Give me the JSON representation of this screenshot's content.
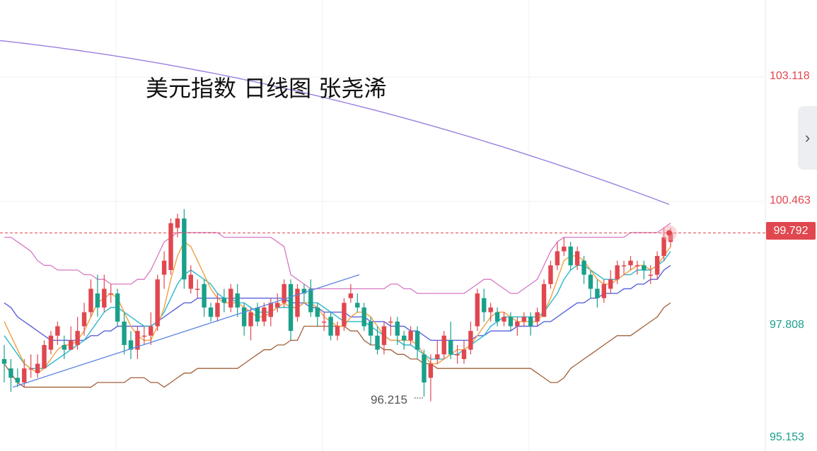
{
  "title": "美元指数 日线图 张尧浠",
  "axis": {
    "ticks": [
      {
        "label": "103.118",
        "value": 103.118,
        "color": "#e0474f"
      },
      {
        "label": "100.463",
        "value": 100.463,
        "color": "#e0474f"
      },
      {
        "label": "97.808",
        "value": 97.808,
        "color": "#1aa08a"
      },
      {
        "label": "95.153",
        "value": 95.153,
        "color": "#1aa08a"
      }
    ],
    "current_price": "99.792",
    "low_label": "96.215"
  },
  "side_button": {
    "icon": "chevron-right-icon",
    "glyph": "›"
  },
  "colors": {
    "up": "#e0474f",
    "down": "#1aa08a"
  },
  "chart_data": {
    "type": "candlestick",
    "ylim": [
      95.153,
      104.0
    ],
    "current": 99.792,
    "low_annotation": 96.215,
    "candles": [
      [
        97.1,
        97.0,
        97.4,
        96.6
      ],
      [
        96.9,
        96.7,
        97.1,
        96.4
      ],
      [
        96.7,
        96.6,
        96.9,
        96.5
      ],
      [
        96.6,
        96.9,
        97.1,
        96.5
      ],
      [
        96.9,
        96.9,
        97.2,
        96.7
      ],
      [
        96.8,
        97.0,
        97.2,
        96.7
      ],
      [
        96.9,
        97.4,
        97.5,
        96.9
      ],
      [
        97.3,
        97.6,
        97.7,
        97.2
      ],
      [
        97.6,
        97.8,
        97.9,
        97.4
      ],
      [
        97.4,
        97.3,
        97.6,
        97.1
      ],
      [
        97.3,
        97.5,
        97.8,
        97.3
      ],
      [
        97.4,
        97.7,
        98.0,
        97.3
      ],
      [
        97.8,
        98.1,
        98.3,
        97.6
      ],
      [
        98.1,
        98.6,
        98.8,
        98.0
      ],
      [
        98.5,
        98.2,
        98.9,
        98.0
      ],
      [
        98.2,
        98.6,
        98.9,
        98.1
      ],
      [
        98.5,
        98.5,
        98.7,
        98.3
      ],
      [
        98.5,
        97.9,
        98.6,
        97.8
      ],
      [
        97.9,
        97.4,
        98.1,
        97.2
      ],
      [
        97.5,
        97.3,
        97.7,
        97.1
      ],
      [
        97.3,
        97.7,
        97.8,
        97.1
      ],
      [
        97.6,
        97.6,
        97.8,
        97.4
      ],
      [
        97.6,
        97.8,
        98.1,
        97.4
      ],
      [
        97.8,
        98.8,
        98.9,
        97.7
      ],
      [
        98.9,
        99.2,
        99.4,
        98.6
      ],
      [
        99.0,
        100.0,
        100.1,
        98.9
      ],
      [
        99.9,
        100.1,
        100.2,
        99.7
      ],
      [
        100.1,
        98.8,
        100.3,
        98.6
      ],
      [
        98.6,
        98.9,
        99.1,
        98.5
      ],
      [
        98.6,
        98.6,
        98.8,
        98.4
      ],
      [
        98.7,
        98.2,
        98.8,
        98.0
      ],
      [
        98.2,
        98.0,
        98.3,
        97.9
      ],
      [
        98.0,
        98.3,
        98.5,
        97.9
      ],
      [
        98.4,
        98.3,
        98.6,
        98.1
      ],
      [
        98.2,
        98.6,
        98.7,
        98.1
      ],
      [
        98.5,
        98.2,
        98.7,
        98.0
      ],
      [
        98.2,
        97.8,
        98.3,
        97.6
      ],
      [
        97.8,
        98.1,
        98.2,
        97.5
      ],
      [
        98.2,
        97.9,
        98.3,
        97.8
      ],
      [
        97.9,
        98.2,
        98.3,
        97.8
      ],
      [
        98.0,
        98.3,
        98.4,
        97.8
      ],
      [
        98.2,
        98.3,
        98.5,
        98.1
      ],
      [
        98.3,
        98.7,
        98.8,
        98.2
      ],
      [
        98.7,
        97.7,
        98.8,
        97.5
      ],
      [
        98.0,
        98.6,
        98.7,
        97.9
      ],
      [
        98.6,
        98.5,
        98.7,
        98.3
      ],
      [
        98.6,
        98.1,
        98.8,
        98.0
      ],
      [
        98.2,
        98.0,
        98.3,
        97.8
      ],
      [
        97.9,
        97.9,
        98.1,
        97.7
      ],
      [
        98.0,
        97.6,
        98.1,
        97.5
      ],
      [
        97.6,
        97.8,
        97.9,
        97.5
      ],
      [
        97.8,
        98.3,
        98.4,
        97.7
      ],
      [
        98.4,
        98.5,
        98.7,
        98.3
      ],
      [
        98.3,
        98.2,
        98.5,
        98.1
      ],
      [
        98.2,
        97.8,
        98.3,
        97.7
      ],
      [
        97.9,
        97.6,
        98.0,
        97.4
      ],
      [
        97.6,
        97.3,
        97.8,
        97.2
      ],
      [
        97.4,
        97.8,
        97.9,
        97.2
      ],
      [
        97.9,
        97.9,
        98.0,
        97.6
      ],
      [
        97.9,
        97.6,
        98.0,
        97.4
      ],
      [
        97.6,
        97.5,
        97.7,
        97.3
      ],
      [
        97.5,
        97.7,
        97.8,
        97.4
      ],
      [
        97.7,
        97.3,
        97.8,
        97.1
      ],
      [
        97.2,
        96.6,
        97.3,
        96.3
      ],
      [
        96.7,
        97.0,
        97.2,
        96.2
      ],
      [
        97.1,
        97.2,
        97.5,
        97.0
      ],
      [
        97.2,
        97.6,
        97.7,
        97.1
      ],
      [
        97.5,
        97.2,
        97.9,
        97.1
      ],
      [
        97.2,
        97.2,
        97.4,
        97.0
      ],
      [
        97.1,
        97.3,
        97.5,
        97.0
      ],
      [
        97.3,
        97.7,
        97.9,
        97.2
      ],
      [
        97.8,
        98.5,
        98.6,
        97.7
      ],
      [
        98.4,
        98.1,
        98.6,
        97.9
      ],
      [
        98.1,
        98.2,
        98.3,
        97.9
      ],
      [
        98.1,
        97.9,
        98.2,
        97.8
      ],
      [
        97.9,
        98.0,
        98.1,
        97.8
      ],
      [
        98.0,
        97.8,
        98.1,
        97.7
      ],
      [
        97.8,
        97.9,
        98.0,
        97.6
      ],
      [
        97.9,
        98.0,
        98.1,
        97.8
      ],
      [
        98.0,
        97.8,
        98.1,
        97.6
      ],
      [
        97.9,
        98.1,
        98.2,
        97.8
      ],
      [
        98.0,
        98.7,
        98.8,
        98.0
      ],
      [
        98.7,
        99.1,
        99.2,
        98.6
      ],
      [
        99.1,
        99.4,
        99.6,
        99.0
      ],
      [
        99.4,
        99.5,
        99.7,
        99.3
      ],
      [
        99.5,
        99.1,
        99.6,
        99.0
      ],
      [
        99.1,
        99.4,
        99.5,
        99.0
      ],
      [
        99.2,
        98.9,
        99.3,
        98.7
      ],
      [
        98.9,
        98.6,
        99.0,
        98.4
      ],
      [
        98.6,
        98.4,
        98.8,
        98.2
      ],
      [
        98.4,
        98.7,
        98.8,
        98.3
      ],
      [
        98.6,
        98.8,
        99.0,
        98.5
      ],
      [
        98.8,
        99.1,
        99.2,
        98.7
      ],
      [
        99.1,
        99.1,
        99.2,
        98.9
      ],
      [
        99.1,
        99.2,
        99.3,
        99.0
      ],
      [
        99.1,
        99.1,
        99.2,
        98.9
      ],
      [
        99.1,
        99.0,
        99.2,
        98.8
      ],
      [
        98.9,
        98.9,
        99.1,
        98.7
      ],
      [
        98.9,
        99.3,
        99.4,
        98.8
      ],
      [
        99.3,
        99.7,
        99.9,
        99.2
      ],
      [
        99.6,
        99.8,
        99.9,
        99.5
      ]
    ],
    "ma_fast": [
      97.9,
      97.6,
      97.3,
      97.0,
      96.9,
      96.8,
      96.9,
      97.1,
      97.3,
      97.4,
      97.4,
      97.5,
      97.7,
      98.0,
      98.3,
      98.4,
      98.5,
      98.4,
      98.1,
      97.8,
      97.6,
      97.5,
      97.5,
      97.8,
      98.2,
      98.8,
      99.3,
      99.6,
      99.5,
      99.2,
      98.9,
      98.6,
      98.4,
      98.3,
      98.3,
      98.3,
      98.2,
      98.1,
      98.0,
      98.0,
      98.1,
      98.2,
      98.3,
      98.2,
      98.2,
      98.3,
      98.3,
      98.2,
      98.0,
      97.9,
      97.8,
      97.8,
      98.0,
      98.1,
      98.1,
      98.0,
      97.8,
      97.6,
      97.5,
      97.5,
      97.5,
      97.5,
      97.4,
      97.2,
      97.0,
      97.0,
      97.1,
      97.2,
      97.3,
      97.3,
      97.4,
      97.6,
      97.8,
      98.0,
      98.1,
      98.1,
      98.0,
      97.9,
      97.9,
      97.9,
      97.9,
      98.1,
      98.4,
      98.8,
      99.2,
      99.3,
      99.3,
      99.2,
      99.0,
      98.8,
      98.7,
      98.7,
      98.8,
      98.9,
      99.0,
      99.1,
      99.1,
      99.0,
      99.1,
      99.3,
      99.5
    ],
    "ma_mid": [
      97.6,
      97.4,
      97.2,
      97.0,
      96.9,
      96.9,
      96.9,
      97.0,
      97.1,
      97.2,
      97.3,
      97.4,
      97.5,
      97.7,
      97.9,
      98.1,
      98.2,
      98.2,
      98.1,
      98.0,
      97.9,
      97.8,
      97.8,
      97.9,
      98.1,
      98.4,
      98.7,
      98.9,
      99.0,
      98.9,
      98.8,
      98.7,
      98.5,
      98.4,
      98.4,
      98.3,
      98.3,
      98.2,
      98.1,
      98.1,
      98.1,
      98.2,
      98.2,
      98.2,
      98.2,
      98.3,
      98.3,
      98.3,
      98.2,
      98.1,
      98.0,
      97.9,
      97.9,
      97.9,
      97.9,
      97.8,
      97.7,
      97.6,
      97.5,
      97.5,
      97.4,
      97.4,
      97.3,
      97.2,
      97.1,
      97.1,
      97.1,
      97.2,
      97.2,
      97.3,
      97.4,
      97.5,
      97.6,
      97.8,
      97.9,
      98.0,
      98.0,
      98.0,
      98.0,
      98.0,
      98.0,
      98.1,
      98.3,
      98.5,
      98.8,
      99.0,
      99.1,
      99.1,
      99.0,
      98.9,
      98.8,
      98.8,
      98.8,
      98.9,
      98.9,
      99.0,
      99.0,
      99.0,
      99.1,
      99.2,
      99.4
    ],
    "ma_slow": [
      98.3,
      98.2,
      98.0,
      97.9,
      97.8,
      97.7,
      97.6,
      97.5,
      97.5,
      97.5,
      97.5,
      97.5,
      97.5,
      97.6,
      97.6,
      97.7,
      97.7,
      97.8,
      97.8,
      97.8,
      97.8,
      97.8,
      97.8,
      97.9,
      98.0,
      98.1,
      98.2,
      98.3,
      98.3,
      98.4,
      98.4,
      98.4,
      98.4,
      98.4,
      98.4,
      98.4,
      98.4,
      98.4,
      98.4,
      98.4,
      98.4,
      98.4,
      98.4,
      98.3,
      98.3,
      98.3,
      98.2,
      98.2,
      98.1,
      98.1,
      98.1,
      98.1,
      98.0,
      98.0,
      98.0,
      97.9,
      97.9,
      97.9,
      97.8,
      97.8,
      97.8,
      97.7,
      97.7,
      97.6,
      97.5,
      97.5,
      97.5,
      97.5,
      97.5,
      97.5,
      97.5,
      97.6,
      97.6,
      97.7,
      97.7,
      97.7,
      97.7,
      97.8,
      97.8,
      97.8,
      97.8,
      97.9,
      97.9,
      98.0,
      98.1,
      98.2,
      98.3,
      98.3,
      98.4,
      98.4,
      98.5,
      98.5,
      98.5,
      98.6,
      98.6,
      98.7,
      98.7,
      98.8,
      98.8,
      99.0,
      99.1
    ],
    "boll_upper": [
      99.7,
      99.7,
      99.6,
      99.5,
      99.4,
      99.2,
      99.1,
      99.1,
      99.0,
      99.0,
      99.0,
      99.0,
      98.9,
      98.9,
      98.8,
      98.8,
      98.7,
      98.7,
      98.7,
      98.7,
      98.8,
      98.8,
      99.0,
      99.3,
      99.6,
      99.7,
      99.8,
      99.8,
      99.8,
      99.8,
      99.8,
      99.8,
      99.8,
      99.7,
      99.7,
      99.7,
      99.7,
      99.7,
      99.7,
      99.7,
      99.7,
      99.6,
      99.5,
      98.9,
      98.8,
      98.7,
      98.6,
      98.6,
      98.6,
      98.6,
      98.6,
      98.6,
      98.6,
      98.6,
      98.6,
      98.6,
      98.6,
      98.6,
      98.7,
      98.7,
      98.6,
      98.6,
      98.5,
      98.5,
      98.5,
      98.5,
      98.5,
      98.5,
      98.5,
      98.5,
      98.6,
      98.7,
      98.8,
      98.8,
      98.7,
      98.6,
      98.5,
      98.5,
      98.6,
      98.7,
      98.8,
      99.1,
      99.4,
      99.6,
      99.7,
      99.7,
      99.7,
      99.7,
      99.7,
      99.7,
      99.7,
      99.7,
      99.7,
      99.7,
      99.8,
      99.8,
      99.8,
      99.8,
      99.8,
      99.9,
      100.0
    ],
    "boll_lower": [
      97.0,
      96.8,
      96.6,
      96.5,
      96.5,
      96.5,
      96.5,
      96.5,
      96.5,
      96.5,
      96.5,
      96.5,
      96.5,
      96.5,
      96.6,
      96.6,
      96.6,
      96.6,
      96.6,
      96.7,
      96.7,
      96.7,
      96.6,
      96.6,
      96.5,
      96.6,
      96.7,
      96.8,
      96.8,
      96.9,
      96.9,
      96.9,
      96.9,
      96.9,
      96.9,
      96.9,
      97.0,
      97.1,
      97.2,
      97.3,
      97.3,
      97.4,
      97.4,
      97.5,
      97.5,
      97.8,
      97.8,
      97.8,
      97.8,
      97.8,
      97.8,
      97.8,
      97.7,
      97.7,
      97.5,
      97.4,
      97.4,
      97.3,
      97.3,
      97.2,
      97.2,
      97.1,
      97.1,
      97.0,
      97.0,
      96.9,
      96.9,
      96.9,
      96.9,
      96.9,
      96.9,
      96.9,
      96.9,
      96.9,
      96.9,
      96.9,
      96.9,
      96.9,
      96.9,
      96.9,
      96.8,
      96.7,
      96.6,
      96.6,
      96.7,
      96.9,
      97.0,
      97.1,
      97.2,
      97.3,
      97.4,
      97.5,
      97.6,
      97.6,
      97.6,
      97.7,
      97.8,
      97.9,
      98.0,
      98.2,
      98.3
    ],
    "trend_line": {
      "from": [
        0,
        96.5
      ],
      "to": [
        64,
        98.9
      ]
    },
    "long_ma": {
      "from": [
        0,
        103.9
      ],
      "to": [
        100,
        100.4
      ]
    }
  }
}
